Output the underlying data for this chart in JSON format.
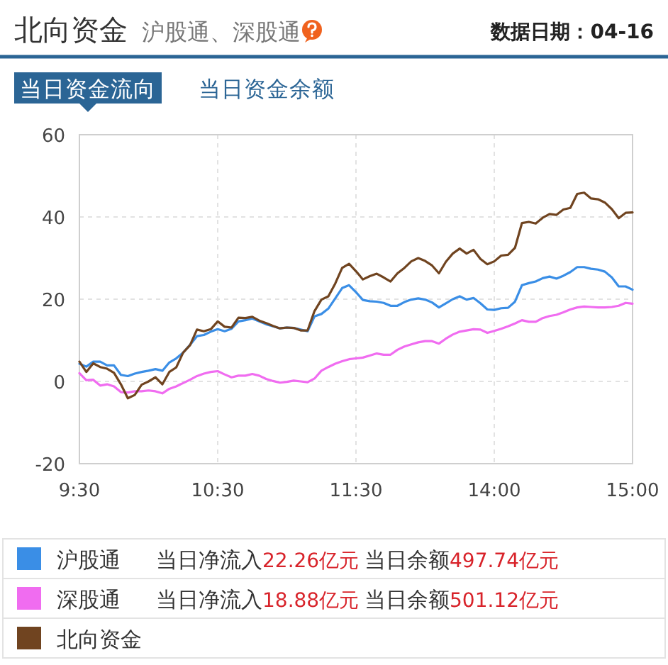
{
  "chart_data": {
    "type": "line",
    "title": "北向资金",
    "subtitle": "沪股通、深股通",
    "annotations": [
      "数据日期：04-16",
      "当日资金流向",
      "当日资金余额",
      "当日净流入",
      "22.26亿元",
      "当日余额",
      "497.74亿元",
      "当日净流入",
      "18.88亿元",
      "当日余额",
      "501.12亿元"
    ],
    "categories": [
      "9:30",
      null,
      null,
      null,
      null,
      null,
      null,
      null,
      null,
      null,
      null,
      null,
      null,
      null,
      null,
      null,
      null,
      null,
      null,
      null,
      "10:30",
      null,
      null,
      null,
      null,
      null,
      null,
      null,
      null,
      null,
      null,
      null,
      null,
      null,
      null,
      null,
      null,
      null,
      null,
      null,
      "11:30",
      null,
      null,
      null,
      null,
      null,
      null,
      null,
      null,
      null,
      null,
      null,
      null,
      null,
      null,
      null,
      null,
      null,
      null,
      null,
      "14:00",
      null,
      null,
      null,
      null,
      null,
      null,
      null,
      null,
      null,
      null,
      null,
      null,
      null,
      null,
      null,
      null,
      null,
      null,
      null,
      "15:00"
    ],
    "ylim": [
      -20,
      60
    ],
    "yticks": [
      -20,
      0,
      20,
      40,
      60
    ],
    "grid": true,
    "legend": "bottom",
    "series": [
      {
        "name": "沪股通",
        "color": "#3a8ee6",
        "values": [
          4.3,
          3.6,
          4.8,
          4.8,
          3.9,
          3.9,
          1.6,
          1.3,
          1.9,
          2.3,
          2.6,
          3.0,
          2.6,
          4.6,
          5.6,
          7.0,
          8.9,
          11.0,
          11.3,
          12.1,
          12.7,
          12.2,
          12.8,
          14.6,
          14.9,
          15.3,
          14.6,
          13.9,
          13.4,
          12.9,
          13.1,
          13.0,
          12.6,
          12.2,
          15.8,
          16.4,
          17.7,
          20.2,
          22.7,
          23.4,
          21.7,
          19.8,
          19.5,
          19.4,
          19.1,
          18.4,
          18.4,
          19.3,
          19.9,
          20.2,
          19.9,
          19.2,
          18.0,
          19.0,
          20.0,
          20.7,
          19.9,
          20.3,
          19.0,
          17.5,
          17.4,
          17.8,
          17.9,
          19.4,
          23.4,
          23.9,
          24.3,
          25.1,
          25.5,
          25.0,
          25.7,
          26.6,
          27.8,
          27.8,
          27.4,
          27.2,
          26.7,
          25.3,
          23.1,
          23.1,
          22.3
        ]
      },
      {
        "name": "深股通",
        "color": "#f06cf0",
        "values": [
          2.0,
          0.3,
          0.4,
          -1.0,
          -0.7,
          -1.2,
          -2.6,
          -2.7,
          -2.4,
          -2.4,
          -2.2,
          -2.4,
          -2.9,
          -1.8,
          -1.2,
          -0.4,
          0.4,
          1.3,
          1.9,
          2.3,
          2.5,
          1.7,
          1.0,
          1.4,
          1.4,
          1.8,
          1.4,
          0.6,
          0.1,
          -0.3,
          -0.1,
          0.2,
          0.0,
          -0.2,
          0.7,
          2.6,
          3.5,
          4.3,
          4.9,
          5.4,
          5.6,
          5.8,
          6.3,
          6.8,
          6.5,
          6.5,
          7.7,
          8.5,
          9.0,
          9.5,
          9.8,
          9.8,
          9.2,
          10.4,
          11.4,
          12.1,
          12.4,
          12.7,
          12.6,
          11.8,
          12.3,
          12.8,
          13.4,
          14.1,
          14.9,
          14.5,
          14.5,
          15.4,
          15.9,
          16.2,
          16.8,
          17.5,
          18.0,
          18.2,
          18.1,
          18.0,
          18.0,
          18.1,
          18.4,
          19.1,
          18.9
        ]
      },
      {
        "name": "北向资金",
        "color": "#704420",
        "values": [
          4.8,
          2.3,
          4.4,
          3.5,
          3.1,
          2.1,
          -0.7,
          -4.1,
          -3.3,
          -0.8,
          0.0,
          1.0,
          -0.7,
          2.3,
          3.4,
          7.0,
          8.8,
          12.6,
          12.2,
          12.7,
          14.6,
          13.3,
          13.1,
          15.5,
          15.4,
          15.7,
          14.8,
          14.2,
          13.5,
          12.9,
          13.1,
          13.0,
          12.4,
          12.4,
          17.1,
          19.9,
          20.7,
          23.8,
          27.6,
          28.6,
          26.8,
          24.8,
          25.6,
          26.2,
          25.3,
          24.3,
          26.3,
          27.6,
          29.2,
          30.0,
          29.3,
          28.2,
          26.3,
          29.1,
          31.1,
          32.3,
          31.1,
          32.0,
          29.8,
          28.5,
          29.2,
          30.6,
          30.8,
          32.5,
          38.5,
          38.8,
          38.4,
          39.8,
          40.7,
          40.5,
          41.8,
          42.2,
          45.6,
          45.9,
          44.5,
          44.3,
          43.5,
          41.9,
          39.7,
          41.0,
          41.1
        ]
      }
    ]
  }
}
